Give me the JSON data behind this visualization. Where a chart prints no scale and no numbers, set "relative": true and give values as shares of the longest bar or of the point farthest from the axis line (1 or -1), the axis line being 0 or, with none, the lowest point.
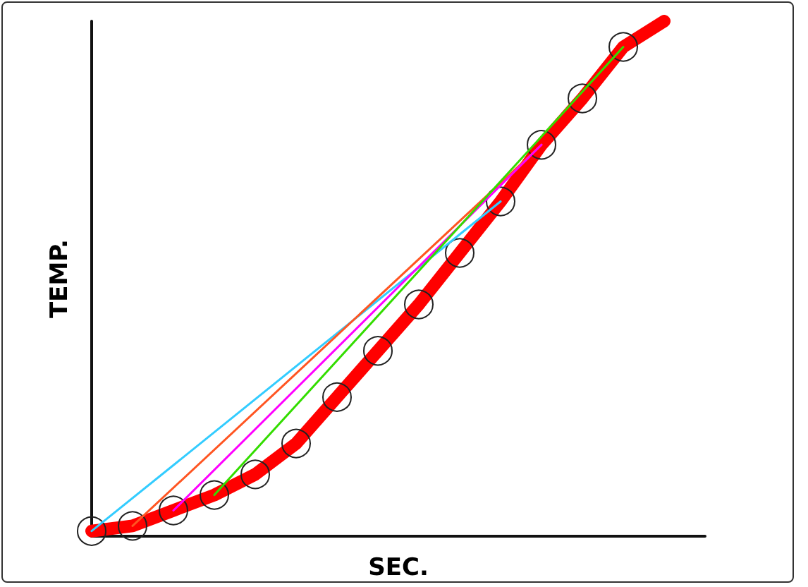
{
  "chart_data": {
    "type": "line",
    "xlabel": "SEC.",
    "ylabel": "TEMP.",
    "relative": true,
    "line_style": "solid",
    "grid": false,
    "categories": [
      null,
      null,
      null,
      null,
      null,
      null,
      null,
      null,
      null,
      null,
      null,
      null,
      null,
      null,
      null,
      null
    ],
    "series": [
      {
        "color": "#ff0000",
        "marker": "circle",
        "values": [
          0.01,
          0.02,
          0.05,
          0.08,
          0.12,
          0.18,
          0.27,
          0.36,
          0.45,
          0.55,
          0.65,
          0.76,
          0.85,
          0.95,
          1.0,
          null
        ]
      },
      {
        "color": "#33ccff",
        "marker": "none",
        "values": [
          0.01,
          null,
          null,
          null,
          null,
          null,
          null,
          null,
          null,
          null,
          0.65,
          null,
          null,
          null,
          null,
          null
        ]
      },
      {
        "color": "#ff5522",
        "marker": "none",
        "values": [
          null,
          0.02,
          null,
          null,
          null,
          null,
          null,
          null,
          null,
          null,
          null,
          0.76,
          null,
          null,
          null,
          null
        ]
      },
      {
        "color": "#ff00ff",
        "marker": "none",
        "values": [
          null,
          null,
          0.05,
          null,
          null,
          null,
          null,
          null,
          null,
          null,
          null,
          0.76,
          null,
          null,
          null,
          null
        ]
      },
      {
        "color": "#33dd00",
        "marker": "none",
        "values": [
          null,
          null,
          null,
          0.08,
          null,
          null,
          null,
          null,
          null,
          null,
          null,
          null,
          null,
          0.95,
          null,
          null
        ]
      }
    ]
  }
}
